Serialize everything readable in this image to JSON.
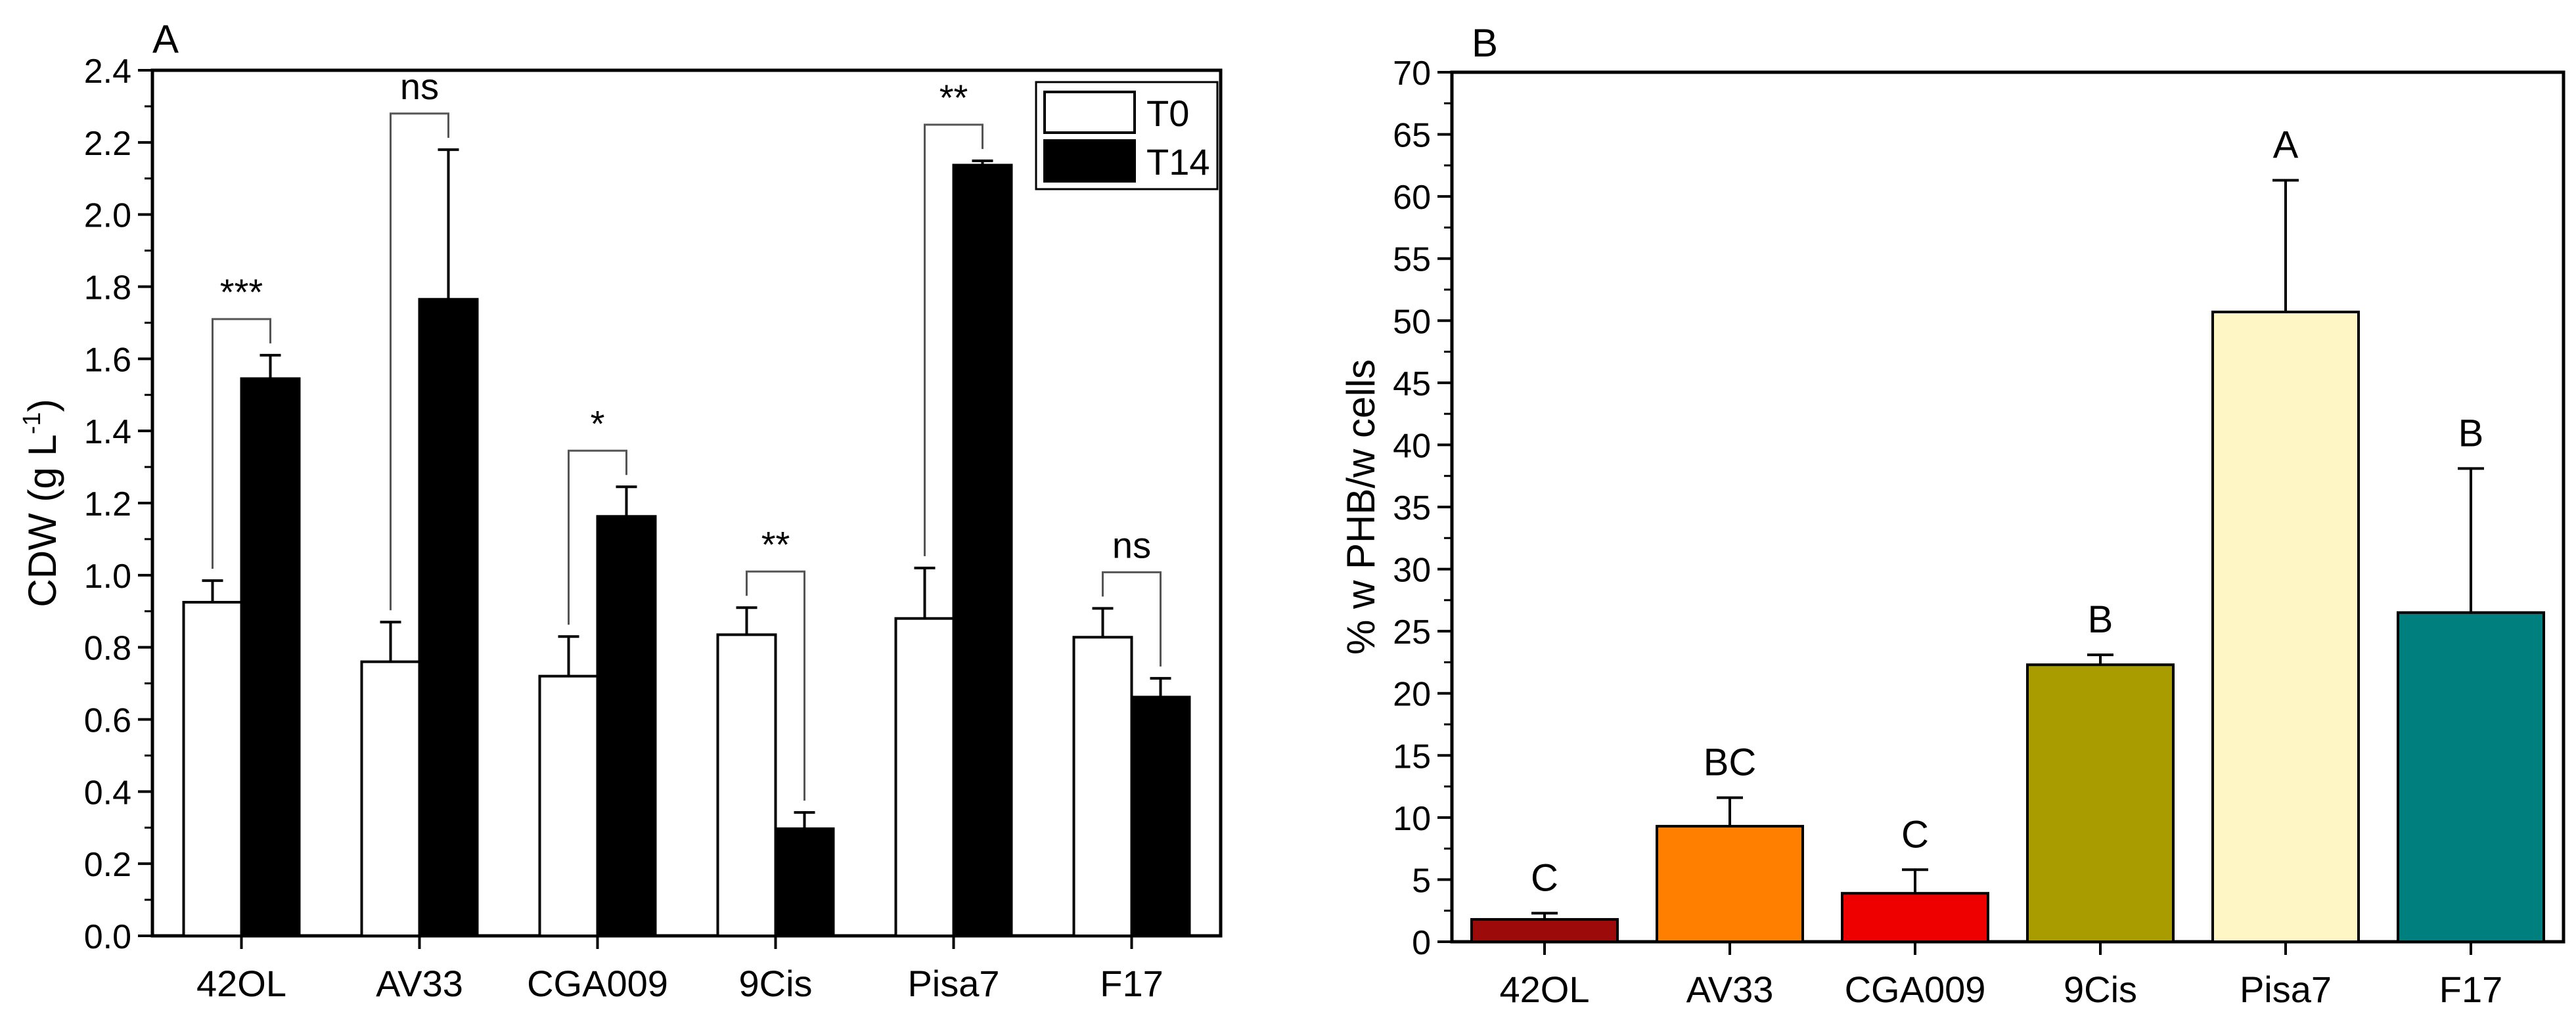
{
  "chart_data": [
    {
      "panel_label": "A",
      "type": "bar",
      "ylabel": "CDW (g L",
      "ylabel_superscript": "-1",
      "ylabel_close": ")",
      "ylim": [
        0,
        2.4
      ],
      "yticks": [
        "0.0",
        "0.2",
        "0.4",
        "0.6",
        "0.8",
        "1.0",
        "1.2",
        "1.4",
        "1.6",
        "1.8",
        "2.0",
        "2.2",
        "2.4"
      ],
      "categories": [
        "42OL",
        "AV33",
        "CGA009",
        "9Cis",
        "Pisa7",
        "F17"
      ],
      "series": [
        {
          "name": "T0",
          "color": "#ffffff",
          "values": [
            0.925,
            0.76,
            0.72,
            0.835,
            0.88,
            0.828
          ],
          "errors": [
            0.06,
            0.11,
            0.11,
            0.075,
            0.14,
            0.08
          ]
        },
        {
          "name": "T14",
          "color": "#000000",
          "values": [
            1.545,
            1.765,
            1.163,
            0.297,
            2.137,
            0.662
          ],
          "errors": [
            0.065,
            0.415,
            0.082,
            0.045,
            0.012,
            0.052
          ]
        }
      ],
      "significance": [
        "***",
        "ns",
        "*",
        "**",
        "**",
        "ns"
      ],
      "legend": [
        "T0",
        "T14"
      ]
    },
    {
      "panel_label": "B",
      "type": "bar",
      "ylabel": "% w PHB/w cells",
      "ylim": [
        0,
        70
      ],
      "yticks": [
        "0",
        "5",
        "10",
        "15",
        "20",
        "25",
        "30",
        "35",
        "40",
        "45",
        "50",
        "55",
        "60",
        "65",
        "70"
      ],
      "categories": [
        "42OL",
        "AV33",
        "CGA009",
        "9Cis",
        "Pisa7",
        "F17"
      ],
      "values": [
        1.8,
        9.3,
        3.9,
        22.3,
        50.7,
        26.5
      ],
      "errors": [
        0.5,
        2.3,
        1.9,
        0.8,
        10.6,
        11.6
      ],
      "colors": [
        "#9c0a0a",
        "#ff8000",
        "#ee0000",
        "#a89c00",
        "#fff6c6",
        "#007f7f"
      ],
      "group_letters": [
        "C",
        "BC",
        "C",
        "B",
        "A",
        "B"
      ]
    }
  ]
}
